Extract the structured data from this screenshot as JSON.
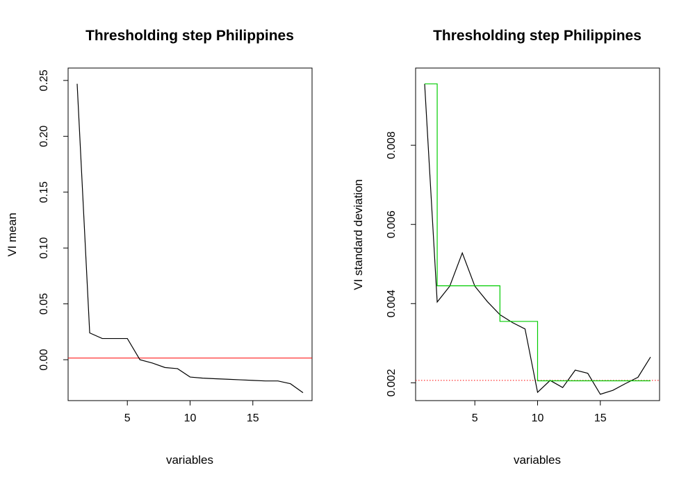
{
  "chart_data": [
    {
      "type": "line",
      "title": "Thresholding step Philippines",
      "xlabel": "variables",
      "ylabel": "VI mean",
      "xlim": [
        0.28,
        19.72
      ],
      "ylim": [
        -0.0366,
        0.2611
      ],
      "xticks": [
        5,
        10,
        15
      ],
      "xtick_labels": [
        "5",
        "10",
        "15"
      ],
      "yticks": [
        0.0,
        0.05,
        0.1,
        0.15,
        0.2,
        0.25
      ],
      "ytick_labels": [
        "0.00",
        "0.05",
        "0.10",
        "0.15",
        "0.20",
        "0.25"
      ],
      "grid": false,
      "series": [
        {
          "color": "#000000",
          "style": "solid",
          "x": [
            1,
            2,
            3,
            4,
            5,
            6,
            7,
            8,
            9,
            10,
            11,
            12,
            13,
            14,
            15,
            16,
            17,
            18,
            19
          ],
          "values": [
            0.247,
            0.024,
            0.019,
            0.019,
            0.019,
            0.0,
            -0.003,
            -0.007,
            -0.008,
            -0.0155,
            -0.0165,
            -0.017,
            -0.0175,
            -0.018,
            -0.0185,
            -0.019,
            -0.019,
            -0.0215,
            -0.0295
          ]
        }
      ],
      "hlines": [
        {
          "y": 0.0015,
          "color": "#ff0000",
          "style": "solid"
        }
      ]
    },
    {
      "type": "line",
      "title": "Thresholding step Philippines",
      "xlabel": "variables",
      "ylabel": "VI standard deviation",
      "xlim": [
        0.28,
        19.72
      ],
      "ylim": [
        0.00155,
        0.00995
      ],
      "xticks": [
        5,
        10,
        15
      ],
      "xtick_labels": [
        "5",
        "10",
        "15"
      ],
      "yticks": [
        0.002,
        0.004,
        0.006,
        0.008
      ],
      "ytick_labels": [
        "0.002",
        "0.004",
        "0.006",
        "0.008"
      ],
      "grid": false,
      "series": [
        {
          "color": "#000000",
          "style": "solid",
          "x": [
            1,
            2,
            3,
            4,
            5,
            6,
            7,
            8,
            9,
            10,
            11,
            12,
            13,
            14,
            15,
            16,
            17,
            18,
            19
          ],
          "values": [
            0.00955,
            0.00404,
            0.00444,
            0.00528,
            0.00444,
            0.00405,
            0.00372,
            0.00352,
            0.00336,
            0.00176,
            0.00206,
            0.00188,
            0.00232,
            0.00224,
            0.00171,
            0.00181,
            0.00198,
            0.00214,
            0.00265
          ]
        },
        {
          "color": "#00cc00",
          "style": "step",
          "x": [
            1,
            2,
            3,
            4,
            5,
            6,
            7,
            8,
            9,
            10,
            11,
            12,
            13,
            14,
            15,
            16,
            17,
            18,
            19
          ],
          "values": [
            0.00955,
            0.00445,
            0.00445,
            0.00445,
            0.00445,
            0.00445,
            0.00355,
            0.00355,
            0.00355,
            0.00205,
            0.00205,
            0.00205,
            0.00205,
            0.00205,
            0.00205,
            0.00205,
            0.00205,
            0.00205,
            0.00205
          ]
        }
      ],
      "hlines": [
        {
          "y": 0.00206,
          "color": "#ff0000",
          "style": "dotted"
        }
      ]
    }
  ]
}
